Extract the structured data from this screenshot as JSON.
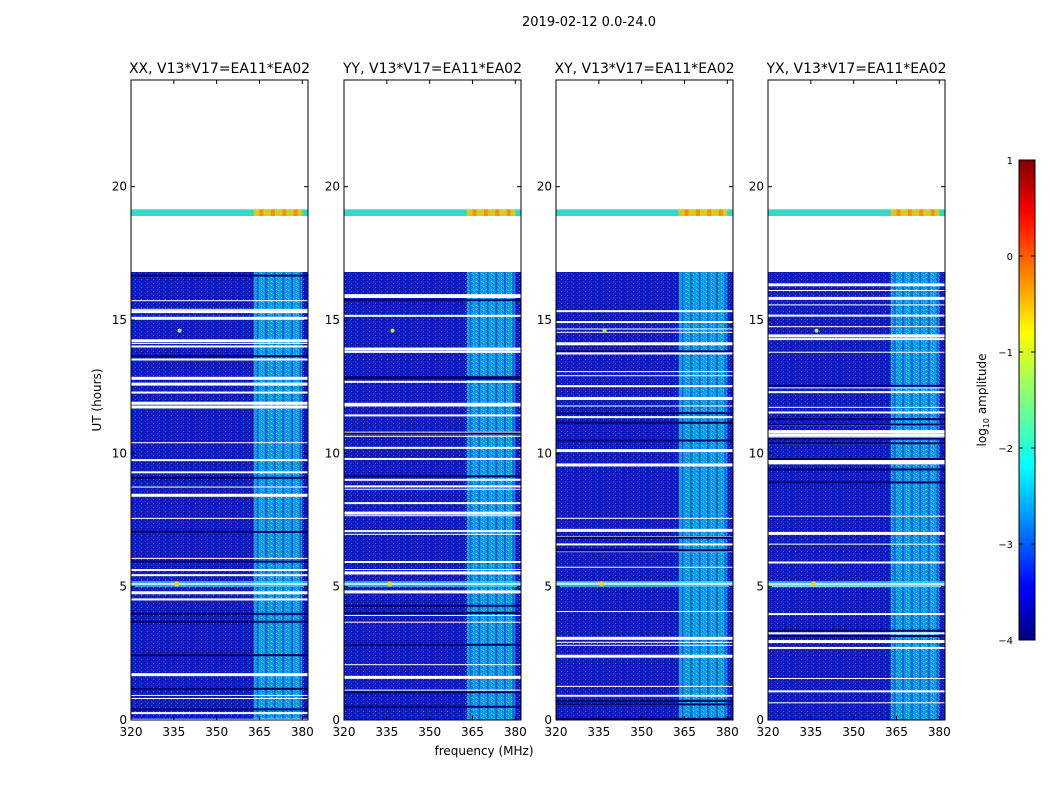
{
  "figure": {
    "suptitle": "2019-02-12 0.0-24.0"
  },
  "chart_data": {
    "type": "heatmap",
    "xlabel": "frequency (MHz)",
    "ylabel": "UT (hours)",
    "xlim": [
      320,
      382
    ],
    "ylim": [
      0,
      24
    ],
    "x_ticks": [
      320,
      335,
      350,
      365,
      380
    ],
    "y_ticks": [
      0,
      5,
      10,
      15,
      20
    ],
    "panels": [
      {
        "title": "XX, V13*V17=EA11*EA02"
      },
      {
        "title": "YY, V13*V17=EA11*EA02"
      },
      {
        "title": "XY, V13*V17=EA11*EA02"
      },
      {
        "title": "YX, V13*V17=EA11*EA02"
      }
    ],
    "colorbar": {
      "label": "log",
      "label_sub": "10",
      "label_suffix": " amplitude",
      "range": [
        -4,
        1
      ],
      "ticks": [
        "1",
        "0",
        "−1",
        "−2",
        "−3",
        "−4"
      ],
      "colormap": [
        "#00007f",
        "#0000ff",
        "#007fff",
        "#00ffff",
        "#7fff7f",
        "#ffff00",
        "#ff7f00",
        "#ff0000",
        "#7f0000"
      ]
    },
    "data_time_blocks_hours": [
      [
        0,
        16.8
      ],
      [
        18.9,
        19.15
      ]
    ],
    "high_amplitude_band_mhz": [
      363,
      380
    ],
    "rfi_feature_hours": 5.1
  }
}
